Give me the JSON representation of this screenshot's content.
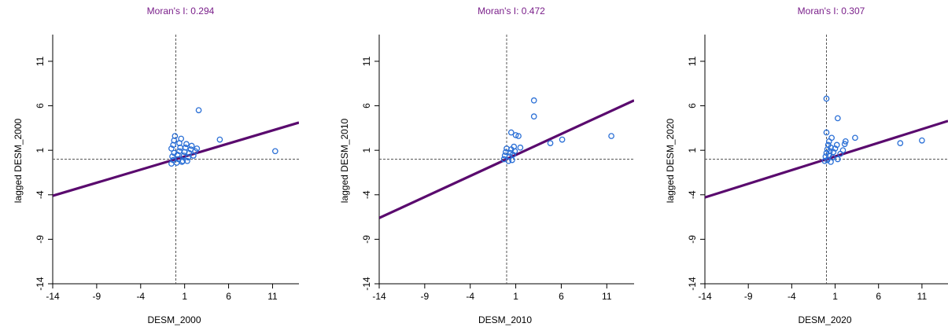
{
  "colors": {
    "title": "#7a1f8a",
    "point": "#2a6fd6",
    "regression": "#5a0a6e",
    "axis": "#000000",
    "reference": "#555555"
  },
  "chart_data": [
    {
      "type": "scatter",
      "title": "Moran's I: 0.294",
      "xlabel": "DESM_2000",
      "ylabel": "lagged DESM_2000",
      "xlim": [
        -14,
        14
      ],
      "ylim": [
        -14,
        14
      ],
      "xticks": [
        -14,
        -9,
        -4,
        1,
        6,
        11
      ],
      "yticks": [
        -14,
        -9,
        -4,
        1,
        6,
        11
      ],
      "reference_x": 0,
      "reference_y": 0,
      "slope": 0.294,
      "points": [
        [
          -0.5,
          -0.5
        ],
        [
          -0.3,
          -0.1
        ],
        [
          -0.4,
          0.3
        ],
        [
          -0.2,
          0.7
        ],
        [
          -0.5,
          1.2
        ],
        [
          -0.3,
          1.6
        ],
        [
          -0.2,
          2.1
        ],
        [
          -0.1,
          2.6
        ],
        [
          0.1,
          -0.4
        ],
        [
          0.3,
          0.0
        ],
        [
          0.2,
          0.5
        ],
        [
          0.4,
          0.9
        ],
        [
          0.5,
          1.3
        ],
        [
          0.4,
          1.8
        ],
        [
          0.6,
          2.3
        ],
        [
          0.8,
          -0.2
        ],
        [
          0.9,
          0.4
        ],
        [
          1.0,
          0.8
        ],
        [
          1.1,
          1.3
        ],
        [
          1.2,
          1.7
        ],
        [
          1.4,
          0.2
        ],
        [
          1.5,
          0.7
        ],
        [
          1.7,
          1.1
        ],
        [
          1.8,
          1.5
        ],
        [
          2.0,
          0.4
        ],
        [
          2.2,
          0.9
        ],
        [
          2.4,
          1.2
        ],
        [
          0.7,
          -0.3
        ],
        [
          1.3,
          -0.2
        ],
        [
          2.6,
          5.5
        ],
        [
          5.0,
          2.2
        ],
        [
          11.3,
          0.9
        ]
      ]
    },
    {
      "type": "scatter",
      "title": "Moran's I: 0.472",
      "xlabel": "DESM_2010",
      "ylabel": "lagged DESM_2010",
      "xlim": [
        -14,
        14
      ],
      "ylim": [
        -14,
        14
      ],
      "xticks": [
        -14,
        -9,
        -4,
        1,
        6,
        11
      ],
      "yticks": [
        -14,
        -9,
        -4,
        1,
        6,
        11
      ],
      "reference_x": 0,
      "reference_y": 0,
      "slope": 0.472,
      "points": [
        [
          -0.3,
          0.0
        ],
        [
          -0.2,
          0.4
        ],
        [
          -0.1,
          0.8
        ],
        [
          0.0,
          1.2
        ],
        [
          0.2,
          -0.2
        ],
        [
          0.3,
          0.3
        ],
        [
          0.4,
          0.7
        ],
        [
          0.5,
          1.1
        ],
        [
          0.6,
          -0.1
        ],
        [
          0.7,
          0.5
        ],
        [
          0.8,
          1.4
        ],
        [
          0.9,
          0.9
        ],
        [
          0.5,
          3.0
        ],
        [
          1.0,
          2.7
        ],
        [
          1.3,
          2.6
        ],
        [
          1.5,
          1.3
        ],
        [
          3.0,
          6.6
        ],
        [
          3.0,
          4.8
        ],
        [
          4.8,
          1.8
        ],
        [
          6.1,
          2.2
        ],
        [
          11.5,
          2.6
        ]
      ]
    },
    {
      "type": "scatter",
      "title": "Moran's I: 0.307",
      "xlabel": "DESM_2020",
      "ylabel": "lagged DESM_2020",
      "xlim": [
        -14,
        14
      ],
      "ylim": [
        -14,
        14
      ],
      "xticks": [
        -14,
        -9,
        -4,
        1,
        6,
        11
      ],
      "yticks": [
        -14,
        -9,
        -4,
        1,
        6,
        11
      ],
      "reference_x": 0,
      "reference_y": 0,
      "slope": 0.307,
      "points": [
        [
          -0.2,
          -0.2
        ],
        [
          -0.1,
          0.3
        ],
        [
          0.0,
          0.7
        ],
        [
          0.1,
          1.1
        ],
        [
          0.2,
          1.6
        ],
        [
          0.1,
          -0.1
        ],
        [
          0.3,
          0.4
        ],
        [
          0.4,
          0.9
        ],
        [
          0.5,
          1.3
        ],
        [
          0.3,
          2.0
        ],
        [
          0.5,
          -0.3
        ],
        [
          0.7,
          0.2
        ],
        [
          0.8,
          0.8
        ],
        [
          1.0,
          1.2
        ],
        [
          1.2,
          1.6
        ],
        [
          1.3,
          0.0
        ],
        [
          1.6,
          0.6
        ],
        [
          1.9,
          1.0
        ],
        [
          2.1,
          1.7
        ],
        [
          0.0,
          3.0
        ],
        [
          0.6,
          2.4
        ],
        [
          0.0,
          6.8
        ],
        [
          1.3,
          4.6
        ],
        [
          2.2,
          2.0
        ],
        [
          3.3,
          2.4
        ],
        [
          8.5,
          1.8
        ],
        [
          11.0,
          2.1
        ]
      ]
    }
  ]
}
